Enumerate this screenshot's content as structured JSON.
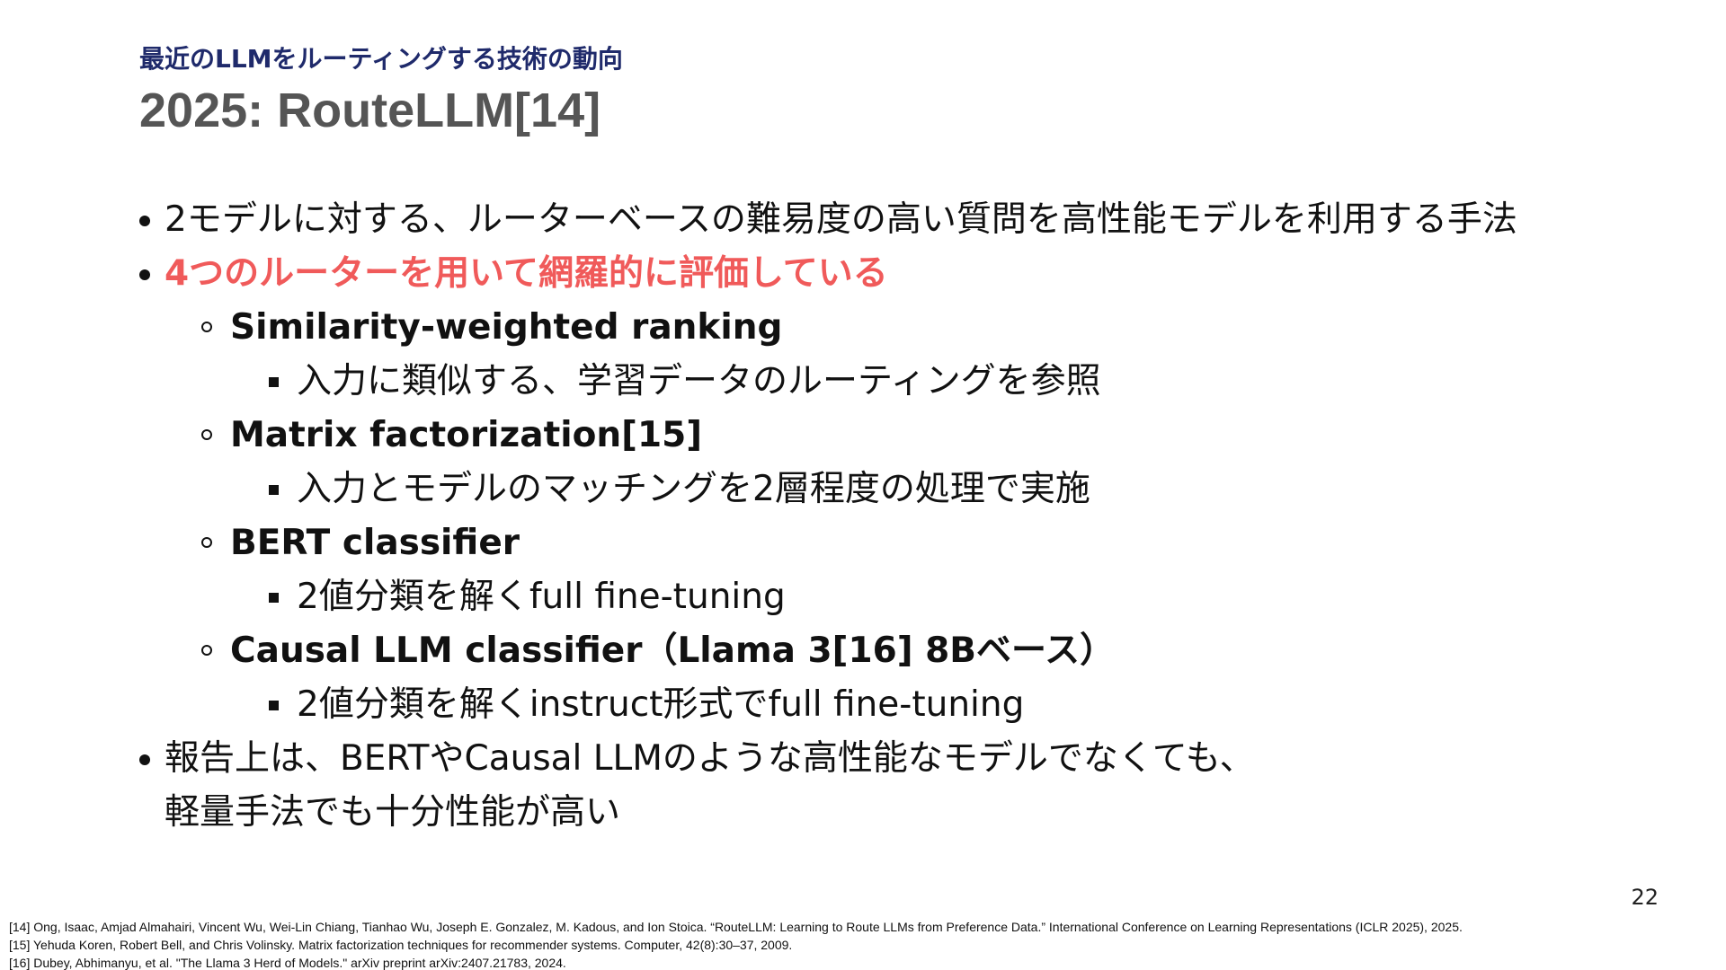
{
  "header": {
    "section": "最近のLLMをルーティングする技術の動向",
    "title": "2025: RouteLLM[14]"
  },
  "bullets": [
    {
      "level": 1,
      "text": "2モデルに対する、ルーターベースの難易度の高い質問を高性能モデルを利用する手法"
    },
    {
      "level": 1,
      "text": "4つのルーターを用いて網羅的に評価している",
      "color": "#f05a5a"
    },
    {
      "level": 2,
      "text": "Similarity-weighted ranking"
    },
    {
      "level": 3,
      "text": "入力に類似する、学習データのルーティングを参照"
    },
    {
      "level": 2,
      "text": "Matrix factorization[15]"
    },
    {
      "level": 3,
      "text": "入力とモデルのマッチングを2層程度の処理で実施"
    },
    {
      "level": 2,
      "text": "BERT classifier"
    },
    {
      "level": 3,
      "text": "2値分類を解くfull fine-tuning"
    },
    {
      "level": 2,
      "text": "Causal LLM classifier（Llama 3[16] 8Bベース）"
    },
    {
      "level": 3,
      "text": "2値分類を解くinstruct形式でfull fine-tuning"
    },
    {
      "level": 1,
      "text": "報告上は、BERTやCausal LLMのような高性能なモデルでなくても、"
    },
    {
      "level": 0,
      "text": "軽量手法でも十分性能が高い"
    }
  ],
  "page_number": "22",
  "footnotes": [
    "[14] Ong, Isaac, Amjad Almahairi, Vincent Wu, Wei-Lin Chiang, Tianhao Wu, Joseph E. Gonzalez, M. Kadous, and Ion Stoica. “RouteLLM: Learning to Route LLMs from Preference Data.” International Conference on Learning Representations (ICLR 2025), 2025.",
    "[15] Yehuda Koren, Robert Bell, and Chris Volinsky. Matrix factorization techniques for recommender systems. Computer, 42(8):30–37, 2009.",
    "[16] Dubey, Abhimanyu, et al. \"The Llama 3 Herd of Models.\" arXiv preprint arXiv:2407.21783, 2024."
  ]
}
